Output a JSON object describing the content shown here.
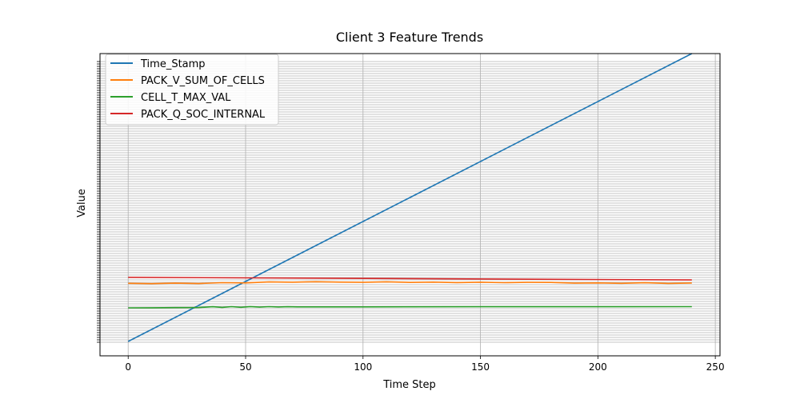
{
  "chart_data": {
    "type": "line",
    "title": "Client 3 Feature Trends",
    "xlabel": "Time Step",
    "ylabel": "Value",
    "xlim": [
      -12,
      252
    ],
    "ylim": [
      -12,
      240
    ],
    "xticks": [
      0,
      50,
      100,
      150,
      200,
      250
    ],
    "y_tick_labels_visible": false,
    "grid": true,
    "legend_position": "upper-left",
    "series": [
      {
        "name": "Time_Stamp",
        "color": "#1f77b4",
        "x": [
          0,
          240
        ],
        "y": [
          0,
          240
        ]
      },
      {
        "name": "PACK_V_SUM_OF_CELLS",
        "color": "#ff7f0e",
        "x": [
          0,
          10,
          20,
          30,
          40,
          50,
          60,
          70,
          80,
          90,
          100,
          110,
          120,
          130,
          140,
          150,
          160,
          170,
          180,
          190,
          200,
          210,
          220,
          230,
          240
        ],
        "y": [
          48.5,
          48.2,
          48.6,
          48.3,
          49.0,
          48.8,
          49.6,
          49.4,
          49.8,
          49.5,
          49.3,
          49.7,
          49.2,
          49.5,
          49.1,
          49.4,
          49.0,
          49.3,
          49.2,
          48.6,
          48.8,
          48.5,
          48.9,
          48.4,
          48.7
        ]
      },
      {
        "name": "CELL_T_MAX_VAL",
        "color": "#2ca02c",
        "x": [
          0,
          10,
          20,
          30,
          36,
          40,
          44,
          48,
          52,
          56,
          60,
          64,
          68,
          72,
          100,
          150,
          200,
          240
        ],
        "y": [
          28.0,
          28.1,
          28.2,
          28.3,
          28.9,
          28.4,
          29.0,
          28.5,
          29.1,
          28.6,
          29.0,
          28.7,
          28.9,
          28.8,
          28.8,
          28.9,
          28.9,
          29.0
        ]
      },
      {
        "name": "PACK_Q_SOC_INTERNAL",
        "color": "#d62728",
        "x": [
          0,
          240
        ],
        "y": [
          53.5,
          51.3
        ]
      }
    ]
  }
}
